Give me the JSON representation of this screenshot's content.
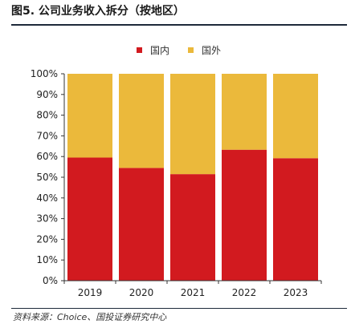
{
  "figure": {
    "title": "图5. 公司业务收入拆分（按地区）",
    "source": "资料来源：Choice、国投证券研究中心"
  },
  "colors": {
    "domestic": "#d21a1f",
    "overseas": "#ebb93b",
    "axis": "#333333",
    "rule": "#1e2a3a"
  },
  "chart_data": {
    "type": "bar",
    "stacked": true,
    "categories": [
      "2019",
      "2020",
      "2021",
      "2022",
      "2023"
    ],
    "series": [
      {
        "name": "国内",
        "values": [
          59.5,
          54.5,
          51.5,
          63.3,
          59.2
        ]
      },
      {
        "name": "国外",
        "values": [
          40.5,
          45.5,
          48.5,
          36.7,
          40.8
        ]
      }
    ],
    "ylim": [
      0,
      100
    ],
    "yticks": [
      "0%",
      "10%",
      "20%",
      "30%",
      "40%",
      "50%",
      "60%",
      "70%",
      "80%",
      "90%",
      "100%"
    ],
    "grid": false,
    "legend_position": "top-center"
  }
}
